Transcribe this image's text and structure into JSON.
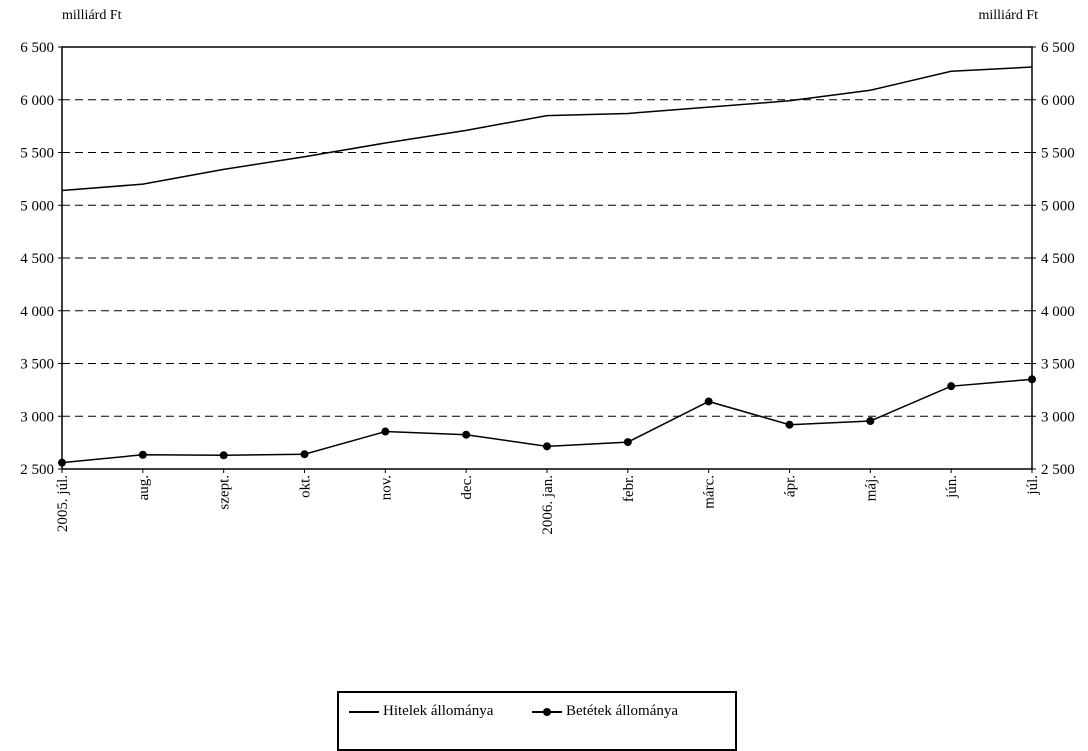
{
  "chart_data": {
    "type": "line",
    "y_unit_left": "milliárd Ft",
    "y_unit_right": "milliárd Ft",
    "categories": [
      "2005. júl.",
      "aug.",
      "szept.",
      "okt.",
      "nov.",
      "dec.",
      "2006. jan.",
      "febr.",
      "márc.",
      "ápr.",
      "máj.",
      "jún.",
      "júl."
    ],
    "ylim": [
      2500,
      6500
    ],
    "yticks": [
      2500,
      3000,
      3500,
      4000,
      4500,
      5000,
      5500,
      6000,
      6500
    ],
    "ytick_labels": [
      "2 500",
      "3 000",
      "3 500",
      "4 000",
      "4 500",
      "5 000",
      "5 500",
      "6 000",
      "6 500"
    ],
    "grid": "dashed horizontal",
    "legend_position": "bottom",
    "series": [
      {
        "name": "Hitelek állománya",
        "marker": "none",
        "values": [
          5140,
          5200,
          5340,
          5460,
          5590,
          5710,
          5850,
          5870,
          5930,
          5990,
          6090,
          6270,
          6310
        ]
      },
      {
        "name": "Betétek állománya",
        "marker": "circle",
        "values": [
          2560,
          2635,
          2630,
          2640,
          2855,
          2825,
          2715,
          2755,
          3140,
          2920,
          2955,
          3285,
          3350
        ]
      }
    ]
  }
}
